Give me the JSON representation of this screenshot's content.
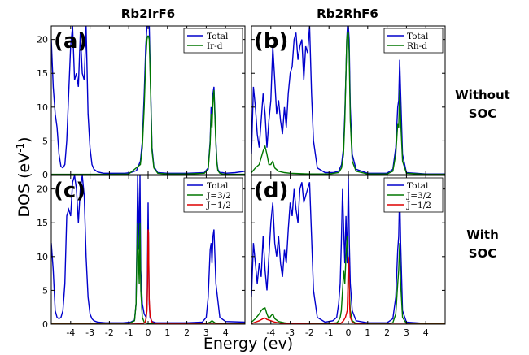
{
  "figure": {
    "col_titles": [
      "Rb2IrF6",
      "Rb2RhF6"
    ],
    "row_labels": [
      [
        "Without",
        "SOC"
      ],
      [
        "With",
        "SOC"
      ]
    ],
    "xlabel": "Energy (ev)",
    "ylabel_main": "DOS (eV",
    "ylabel_sup": "-1",
    "ylabel_close": ")"
  },
  "chart_data": [
    {
      "panel": "(a)",
      "type": "line",
      "xlim": [
        -5,
        5
      ],
      "ylim": [
        0,
        22
      ],
      "xticks": [
        -4,
        -3,
        -2,
        -1,
        0,
        1,
        2,
        3,
        4
      ],
      "yticks": [
        0,
        5,
        10,
        15,
        20
      ],
      "legend": "top-right",
      "series": [
        {
          "name": "Total",
          "color": "#0000cc",
          "x": [
            -5.0,
            -4.9,
            -4.8,
            -4.7,
            -4.6,
            -4.5,
            -4.4,
            -4.3,
            -4.2,
            -4.1,
            -4.0,
            -3.9,
            -3.8,
            -3.7,
            -3.6,
            -3.5,
            -3.4,
            -3.3,
            -3.2,
            -3.1,
            -3.0,
            -2.9,
            -2.8,
            -2.6,
            -2.3,
            -2.0,
            -1.6,
            -1.2,
            -0.9,
            -0.6,
            -0.4,
            -0.3,
            -0.2,
            -0.12,
            -0.06,
            -0.02,
            0.02,
            0.06,
            0.12,
            0.2,
            0.3,
            0.5,
            1.0,
            2.0,
            2.9,
            3.1,
            3.2,
            3.25,
            3.3,
            3.35,
            3.4,
            3.45,
            3.5,
            3.55,
            3.6,
            3.7,
            3.85,
            4.0,
            4.5,
            5.0
          ],
          "y": [
            20,
            13,
            9,
            7,
            3,
            1.2,
            1.0,
            1.5,
            5,
            12,
            19,
            22,
            14,
            15,
            13,
            21,
            15,
            14,
            22,
            9,
            4,
            1.5,
            0.8,
            0.4,
            0.2,
            0.2,
            0.2,
            0.2,
            0.3,
            0.6,
            2,
            5,
            12,
            19,
            22,
            22,
            22,
            22,
            14,
            4,
            1.2,
            0.3,
            0.2,
            0.2,
            0.3,
            1,
            5,
            10,
            8,
            12,
            13,
            9,
            5,
            2,
            0.8,
            0.3,
            0.3,
            0.2,
            0.3,
            0.5
          ]
        },
        {
          "name": "Ir-d",
          "color": "#007700",
          "x": [
            -5.0,
            -4.0,
            -3.0,
            -2.0,
            -1.0,
            -0.4,
            -0.3,
            -0.2,
            -0.12,
            -0.06,
            -0.02,
            0.02,
            0.06,
            0.12,
            0.2,
            0.3,
            0.5,
            1.0,
            2.0,
            2.9,
            3.1,
            3.2,
            3.25,
            3.3,
            3.35,
            3.4,
            3.45,
            3.5,
            3.55,
            3.6,
            3.7,
            3.85,
            4.0,
            5.0
          ],
          "y": [
            0.05,
            0.05,
            0.05,
            0.05,
            0.1,
            1.5,
            4,
            10,
            17,
            20,
            20.5,
            20.5,
            20,
            13,
            3.5,
            1,
            0.2,
            0.1,
            0.1,
            0.2,
            0.8,
            4.5,
            9,
            7,
            11,
            12.5,
            8.5,
            4.5,
            1.8,
            0.6,
            0.2,
            0.1,
            0.05,
            0.05
          ]
        }
      ]
    },
    {
      "panel": "(b)",
      "type": "line",
      "xlim": [
        -5,
        5
      ],
      "ylim": [
        0,
        22
      ],
      "xticks": [
        -4,
        -3,
        -2,
        -1,
        0,
        1,
        2,
        3,
        4
      ],
      "yticks": [
        0,
        5,
        10,
        15,
        20
      ],
      "legend": "top-right",
      "series": [
        {
          "name": "Total",
          "color": "#0000cc",
          "x": [
            -5.0,
            -4.9,
            -4.8,
            -4.7,
            -4.6,
            -4.5,
            -4.4,
            -4.3,
            -4.2,
            -4.1,
            -4.0,
            -3.9,
            -3.8,
            -3.7,
            -3.6,
            -3.5,
            -3.4,
            -3.3,
            -3.2,
            -3.1,
            -3.0,
            -2.9,
            -2.8,
            -2.7,
            -2.6,
            -2.5,
            -2.4,
            -2.3,
            -2.2,
            -2.1,
            -2.0,
            -1.9,
            -1.8,
            -1.6,
            -1.2,
            -0.8,
            -0.5,
            -0.35,
            -0.25,
            -0.18,
            -0.12,
            -0.08,
            -0.04,
            0.0,
            0.04,
            0.1,
            0.2,
            0.4,
            1.0,
            2.0,
            2.3,
            2.45,
            2.55,
            2.6,
            2.65,
            2.7,
            2.8,
            3.0,
            4.0,
            5.0
          ],
          "y": [
            3,
            13,
            10,
            6,
            4,
            8,
            12,
            9,
            4,
            8,
            11,
            19,
            14,
            9,
            11,
            8,
            6,
            10,
            7,
            12,
            15,
            16,
            20,
            21,
            17,
            19,
            20,
            14,
            19,
            18,
            22,
            12,
            5,
            1,
            0.3,
            0.3,
            0.5,
            1.5,
            4,
            9,
            15,
            20,
            22,
            22,
            20,
            10,
            3,
            0.8,
            0.2,
            0.2,
            0.8,
            4,
            10,
            11,
            17,
            12,
            3,
            0.3,
            0.1,
            0.1
          ]
        },
        {
          "name": "Rh-d",
          "color": "#007700",
          "x": [
            -5.0,
            -4.8,
            -4.6,
            -4.5,
            -4.4,
            -4.3,
            -4.2,
            -4.1,
            -4.0,
            -3.9,
            -3.8,
            -3.6,
            -3.3,
            -3.0,
            -2.0,
            -1.0,
            -0.5,
            -0.35,
            -0.25,
            -0.18,
            -0.12,
            -0.08,
            -0.04,
            0.0,
            0.04,
            0.1,
            0.2,
            0.4,
            1.0,
            2.0,
            2.3,
            2.45,
            2.55,
            2.6,
            2.65,
            2.7,
            2.8,
            3.0,
            4.0,
            5.0
          ],
          "y": [
            0.3,
            1.0,
            1.5,
            2.5,
            3.5,
            4.2,
            3.0,
            1.5,
            1.5,
            2.0,
            1.0,
            0.5,
            0.3,
            0.2,
            0.1,
            0.1,
            0.3,
            1,
            3,
            8,
            15,
            20,
            21,
            21,
            18,
            8,
            2,
            0.5,
            0.1,
            0.1,
            0.5,
            3,
            7.5,
            7,
            12.5,
            8,
            2,
            0.2,
            0.05,
            0.05
          ]
        }
      ]
    },
    {
      "panel": "(c)",
      "type": "line",
      "xlim": [
        -5,
        5
      ],
      "ylim": [
        0,
        22
      ],
      "xticks": [
        -4,
        -3,
        -2,
        -1,
        0,
        1,
        2,
        3,
        4
      ],
      "yticks": [
        0,
        5,
        10,
        15,
        20
      ],
      "legend": "top-right",
      "series": [
        {
          "name": "Total",
          "color": "#0000cc",
          "x": [
            -5.0,
            -4.9,
            -4.8,
            -4.7,
            -4.6,
            -4.5,
            -4.4,
            -4.3,
            -4.2,
            -4.1,
            -4.0,
            -3.9,
            -3.8,
            -3.7,
            -3.6,
            -3.5,
            -3.4,
            -3.3,
            -3.2,
            -3.1,
            -3.0,
            -2.9,
            -2.8,
            -2.6,
            -2.2,
            -1.8,
            -1.3,
            -0.9,
            -0.7,
            -0.62,
            -0.58,
            -0.54,
            -0.5,
            -0.46,
            -0.42,
            -0.38,
            -0.3,
            -0.2,
            -0.1,
            -0.05,
            0.0,
            0.03,
            0.06,
            0.1,
            0.2,
            0.4,
            1.0,
            2.0,
            2.8,
            3.0,
            3.1,
            3.2,
            3.25,
            3.3,
            3.35,
            3.4,
            3.5,
            3.7,
            4.0,
            5.0
          ],
          "y": [
            12,
            8,
            2,
            1,
            0.8,
            1,
            2,
            6,
            16,
            17,
            16,
            21,
            22,
            20,
            15,
            20,
            22,
            19,
            10,
            4,
            1.5,
            0.8,
            0.5,
            0.3,
            0.2,
            0.2,
            0.2,
            0.3,
            0.6,
            3,
            12,
            22,
            17,
            11,
            22,
            8,
            3,
            1.5,
            1.0,
            3,
            18,
            10,
            3,
            1,
            0.4,
            0.2,
            0.2,
            0.2,
            0.3,
            1,
            4,
            11,
            12,
            9,
            13,
            14,
            6,
            1,
            0.4,
            0.3
          ]
        },
        {
          "name": "J=3/2",
          "color": "#007700",
          "x": [
            -5.0,
            -4.0,
            -3.0,
            -2.0,
            -1.0,
            -0.7,
            -0.62,
            -0.58,
            -0.54,
            -0.5,
            -0.46,
            -0.42,
            -0.38,
            -0.3,
            -0.2,
            0.0,
            1.0,
            2.0,
            2.9,
            3.0,
            3.2,
            3.3,
            3.4,
            3.5,
            4.0,
            5.0
          ],
          "y": [
            0.05,
            0.05,
            0.05,
            0.05,
            0.1,
            0.5,
            3,
            10,
            15,
            10,
            6,
            15,
            5,
            1,
            0.3,
            0.1,
            0.05,
            0.05,
            0.05,
            0.1,
            0.3,
            0.5,
            0.3,
            0.1,
            0.05,
            0.05
          ]
        },
        {
          "name": "J=1/2",
          "color": "#dd0000",
          "x": [
            -5.0,
            -1.0,
            -0.3,
            -0.15,
            -0.1,
            -0.06,
            -0.03,
            0.0,
            0.02,
            0.05,
            0.1,
            0.2,
            0.4,
            5.0
          ],
          "y": [
            0.0,
            0.0,
            0.05,
            0.3,
            1.0,
            2.0,
            6.0,
            14.0,
            13.5,
            4.0,
            1.2,
            0.3,
            0.05,
            0.0
          ]
        }
      ]
    },
    {
      "panel": "(d)",
      "type": "line",
      "xlim": [
        -5,
        5
      ],
      "ylim": [
        0,
        22
      ],
      "xticks": [
        -4,
        -3,
        -2,
        -1,
        0,
        1,
        2,
        3,
        4
      ],
      "yticks": [
        0,
        5,
        10,
        15,
        20
      ],
      "legend": "top-right",
      "series": [
        {
          "name": "Total",
          "color": "#0000cc",
          "x": [
            -5.0,
            -4.9,
            -4.8,
            -4.7,
            -4.6,
            -4.5,
            -4.4,
            -4.3,
            -4.2,
            -4.1,
            -4.0,
            -3.9,
            -3.8,
            -3.7,
            -3.6,
            -3.5,
            -3.4,
            -3.3,
            -3.2,
            -3.1,
            -3.0,
            -2.9,
            -2.8,
            -2.7,
            -2.6,
            -2.5,
            -2.4,
            -2.3,
            -2.2,
            -2.1,
            -2.0,
            -1.9,
            -1.8,
            -1.6,
            -1.2,
            -0.8,
            -0.6,
            -0.5,
            -0.42,
            -0.36,
            -0.3,
            -0.24,
            -0.18,
            -0.12,
            -0.06,
            0.0,
            0.05,
            0.1,
            0.2,
            0.4,
            1.0,
            2.0,
            2.3,
            2.45,
            2.55,
            2.6,
            2.65,
            2.7,
            2.8,
            3.0,
            4.0,
            5.0
          ],
          "y": [
            4,
            12,
            9,
            6,
            9,
            7,
            13,
            8,
            5,
            10,
            15,
            18,
            12,
            10,
            13,
            9,
            7,
            11,
            9,
            14,
            18,
            16,
            20,
            17,
            15,
            20,
            21,
            18,
            19,
            20,
            21,
            13,
            5,
            1,
            0.3,
            0.5,
            1,
            3,
            6,
            12,
            20,
            14,
            9,
            16,
            9,
            22,
            12,
            6,
            2,
            0.5,
            0.2,
            0.2,
            0.8,
            4,
            11,
            13,
            20,
            12,
            2,
            0.3,
            0.1,
            0.1
          ]
        },
        {
          "name": "J=3/2",
          "color": "#007700",
          "x": [
            -5.0,
            -4.8,
            -4.6,
            -4.5,
            -4.4,
            -4.3,
            -4.2,
            -4.1,
            -4.0,
            -3.9,
            -3.8,
            -3.6,
            -3.3,
            -3.0,
            -2.0,
            -1.0,
            -0.6,
            -0.5,
            -0.42,
            -0.36,
            -0.3,
            -0.24,
            -0.18,
            -0.12,
            -0.06,
            0.0,
            0.05,
            0.1,
            0.2,
            0.4,
            1.0,
            2.0,
            2.3,
            2.45,
            2.55,
            2.6,
            2.65,
            2.7,
            2.8,
            3.0,
            4.0,
            5.0
          ],
          "y": [
            0.3,
            0.8,
            1.5,
            2.0,
            2.3,
            2.4,
            1.5,
            0.8,
            1.2,
            1.5,
            0.8,
            0.4,
            0.2,
            0.1,
            0.1,
            0.1,
            0.2,
            0.5,
            1,
            2,
            5,
            8,
            6,
            10,
            13,
            9,
            5,
            2,
            0.5,
            0.1,
            0.05,
            0.05,
            0.2,
            1.5,
            6,
            8,
            12,
            6,
            1,
            0.1,
            0.05,
            0.05
          ]
        },
        {
          "name": "J=1/2",
          "color": "#dd0000",
          "x": [
            -5.0,
            -4.8,
            -4.6,
            -4.4,
            -4.3,
            -4.2,
            -4.0,
            -3.8,
            -3.5,
            -3.0,
            -1.0,
            -0.4,
            -0.25,
            -0.15,
            -0.1,
            -0.06,
            -0.03,
            0.0,
            0.03,
            0.06,
            0.1,
            0.2,
            0.4,
            1.0,
            5.0
          ],
          "y": [
            0.1,
            0.3,
            0.5,
            0.8,
            0.9,
            0.7,
            0.5,
            0.3,
            0.15,
            0.05,
            0.0,
            0.1,
            0.5,
            1.0,
            1.5,
            2.0,
            5.0,
            10.0,
            9.0,
            3.0,
            1.0,
            0.3,
            0.05,
            0.0,
            0.0
          ]
        }
      ]
    }
  ]
}
